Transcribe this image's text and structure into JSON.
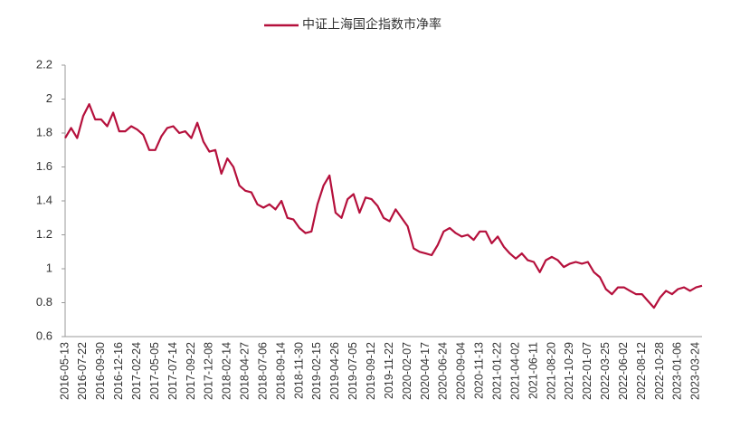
{
  "chart_data": {
    "type": "line",
    "series": [
      {
        "name": "中证上海国企指数市净率",
        "color": "#b5103c",
        "values": [
          1.77,
          1.83,
          1.77,
          1.9,
          1.97,
          1.88,
          1.88,
          1.84,
          1.92,
          1.81,
          1.81,
          1.84,
          1.82,
          1.79,
          1.7,
          1.7,
          1.78,
          1.83,
          1.84,
          1.8,
          1.81,
          1.77,
          1.86,
          1.75,
          1.69,
          1.7,
          1.56,
          1.65,
          1.6,
          1.49,
          1.46,
          1.45,
          1.38,
          1.36,
          1.38,
          1.35,
          1.4,
          1.3,
          1.29,
          1.24,
          1.21,
          1.22,
          1.38,
          1.49,
          1.55,
          1.33,
          1.3,
          1.41,
          1.44,
          1.33,
          1.42,
          1.41,
          1.37,
          1.3,
          1.28,
          1.35,
          1.3,
          1.25,
          1.12,
          1.1,
          1.09,
          1.08,
          1.14,
          1.22,
          1.24,
          1.21,
          1.19,
          1.2,
          1.17,
          1.22,
          1.22,
          1.15,
          1.19,
          1.13,
          1.09,
          1.06,
          1.09,
          1.05,
          1.04,
          0.98,
          1.05,
          1.07,
          1.05,
          1.01,
          1.03,
          1.04,
          1.03,
          1.04,
          0.98,
          0.95,
          0.88,
          0.85,
          0.89,
          0.89,
          0.87,
          0.85,
          0.85,
          0.81,
          0.77,
          0.83,
          0.87,
          0.85,
          0.88,
          0.89,
          0.87,
          0.89,
          0.9
        ]
      }
    ],
    "categories": [
      "2016-05-13",
      null,
      null,
      "2016-07-22",
      null,
      null,
      "2016-09-30",
      null,
      null,
      "2016-12-16",
      null,
      null,
      "2017-02-24",
      null,
      null,
      "2017-05-05",
      null,
      null,
      "2017-07-14",
      null,
      null,
      "2017-09-22",
      null,
      null,
      "2017-12-08",
      null,
      null,
      "2018-02-14",
      null,
      null,
      "2018-04-27",
      null,
      null,
      "2018-07-06",
      null,
      null,
      "2018-09-14",
      null,
      null,
      "2018-11-30",
      null,
      null,
      "2019-02-15",
      null,
      null,
      "2019-04-26",
      null,
      null,
      "2019-07-05",
      null,
      null,
      "2019-09-12",
      null,
      null,
      "2019-11-22",
      null,
      null,
      "2020-02-07",
      null,
      null,
      "2020-04-17",
      null,
      null,
      "2020-06-24",
      null,
      null,
      "2020-09-04",
      null,
      null,
      "2020-11-13",
      null,
      null,
      "2021-01-22",
      null,
      null,
      "2021-04-02",
      null,
      null,
      "2021-06-11",
      null,
      null,
      "2021-08-20",
      null,
      null,
      "2021-10-29",
      null,
      null,
      "2022-01-07",
      null,
      null,
      "2022-03-25",
      null,
      null,
      "2022-06-02",
      null,
      null,
      "2022-08-12",
      null,
      null,
      "2022-10-28",
      null,
      null,
      "2023-01-06",
      null,
      null,
      "2023-03-24",
      null
    ],
    "ylim": [
      0.6,
      2.2
    ],
    "yticks": [
      0.6,
      0.8,
      1,
      1.2,
      1.4,
      1.6,
      1.8,
      2,
      2.2
    ],
    "grid": false,
    "legend": "top"
  }
}
